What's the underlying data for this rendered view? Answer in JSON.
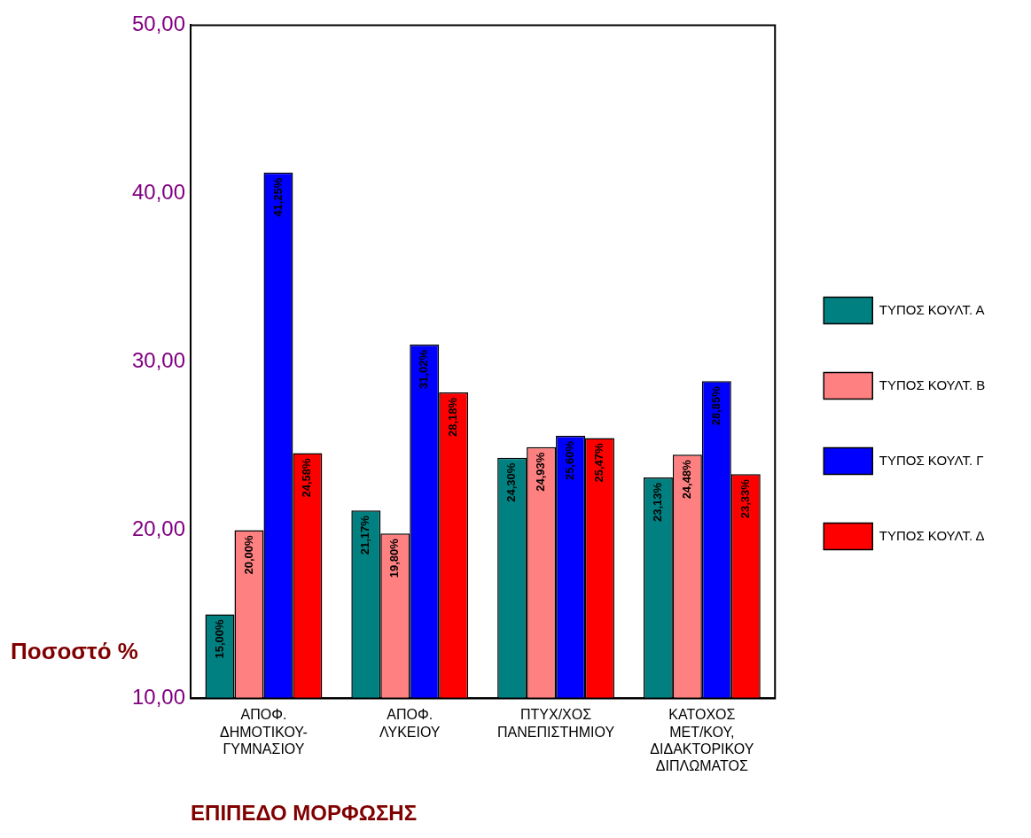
{
  "chart_data": {
    "type": "bar",
    "xlabel": "ΕΠΙΠΕΔΟ ΜΟΡΦΩΣΗΣ",
    "ylabel": "Ποσοστό %",
    "categories": [
      "ΑΠΟΦ. ΔΗΜΟΤΙΚΟΥ- ΓΥΜΝΑΣΙΟΥ",
      "ΑΠΟΦ. ΛΥΚΕΙΟΥ",
      "ΠΤΥΧ/ΧΟΣ ΠΑΝΕΠΙΣΤΗΜΙΟΥ",
      "ΚΑΤΟΧΟΣ ΜΕΤ/ΚΟΥ, ΔΙΔΑΚΤΟΡΙΚΟΥ ΔΙΠΛΩΜΑΤΟΣ"
    ],
    "series": [
      {
        "name": "ΤΥΠΟΣ ΚΟΥΛΤ. Α",
        "color": "#008080",
        "values": [
          15.0,
          21.17,
          24.3,
          23.13
        ],
        "value_labels": [
          "15,00%",
          "21,17%",
          "24,30%",
          "23,13%"
        ]
      },
      {
        "name": "ΤΥΠΟΣ ΚΟΥΛΤ. Β",
        "color": "#ff8080",
        "values": [
          20.0,
          19.8,
          24.93,
          24.48
        ],
        "value_labels": [
          "20,00%",
          "19,80%",
          "24,93%",
          "24,48%"
        ]
      },
      {
        "name": "ΤΥΠΟΣ ΚΟΥΛΤ. Γ",
        "color": "#0000ff",
        "values": [
          41.25,
          31.02,
          25.6,
          28.85
        ],
        "value_labels": [
          "41,25%",
          "31,02%",
          "25,60%",
          "28,85%"
        ]
      },
      {
        "name": "ΤΥΠΟΣ ΚΟΥΛΤ. Δ",
        "color": "#ff0000",
        "values": [
          24.58,
          28.18,
          25.47,
          23.33
        ],
        "value_labels": [
          "24,58%",
          "28,18%",
          "25,47%",
          "23,33%"
        ]
      }
    ],
    "ylim": [
      10,
      50
    ],
    "yticks": [
      {
        "value": 10,
        "label": "10,00"
      },
      {
        "value": 20,
        "label": "20,00"
      },
      {
        "value": 30,
        "label": "30,00"
      },
      {
        "value": 40,
        "label": "40,00"
      },
      {
        "value": 50,
        "label": "50,00"
      }
    ],
    "grid": false,
    "legend": "right"
  }
}
